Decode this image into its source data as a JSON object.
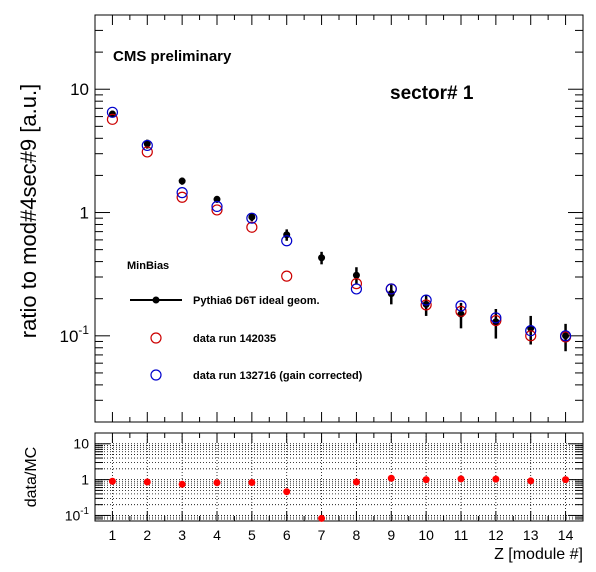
{
  "chart_data": [
    {
      "type": "scatter",
      "panel": "top",
      "yscale": "log",
      "ylim": [
        0.02,
        40
      ],
      "xlim": [
        0.5,
        14.5
      ],
      "ylabel": "ratio to mod#4sec#9 [a.u.]",
      "xlabel": "",
      "y_tick_labels": [
        {
          "value": 10,
          "base": "10",
          "exp": ""
        },
        {
          "value": 1,
          "base": "1",
          "exp": ""
        },
        {
          "value": 0.1,
          "base": "10",
          "exp": "-1"
        }
      ],
      "annotations": {
        "experiment": "CMS preliminary",
        "sector": "sector# 1"
      },
      "legend": {
        "header": "MinBias",
        "placement": "center-left"
      },
      "series": [
        {
          "name": "Pythia6 D6T ideal geom.",
          "color": "#000000",
          "marker": "filled-circle",
          "x": [
            1,
            2,
            3,
            4,
            5,
            6,
            7,
            8,
            9,
            10,
            11,
            12,
            13,
            14
          ],
          "y": [
            6.3,
            3.6,
            1.8,
            1.28,
            0.92,
            0.66,
            0.43,
            0.31,
            0.22,
            0.18,
            0.15,
            0.13,
            0.115,
            0.1
          ],
          "yerr_low": [
            0.4,
            0.3,
            0.12,
            0.08,
            0.07,
            0.07,
            0.05,
            0.05,
            0.04,
            0.035,
            0.035,
            0.035,
            0.03,
            0.025
          ],
          "yerr_high": [
            0.4,
            0.3,
            0.12,
            0.08,
            0.07,
            0.07,
            0.05,
            0.05,
            0.04,
            0.035,
            0.035,
            0.035,
            0.03,
            0.025
          ]
        },
        {
          "name": "data run 142035",
          "color": "#cc0000",
          "marker": "open-circle",
          "x": [
            1,
            2,
            3,
            4,
            5,
            6,
            7,
            8,
            9,
            10,
            11,
            12,
            13,
            14
          ],
          "y": [
            5.7,
            3.1,
            1.33,
            1.05,
            0.76,
            0.305,
            null,
            0.265,
            0.24,
            0.178,
            0.158,
            0.133,
            0.1,
            0.098
          ]
        },
        {
          "name": "data run 132716 (gain corrected)",
          "color": "#0000cc",
          "marker": "open-circle",
          "x": [
            1,
            2,
            3,
            4,
            5,
            6,
            7,
            8,
            9,
            10,
            11,
            12,
            13,
            14
          ],
          "y": [
            6.5,
            3.5,
            1.45,
            1.12,
            0.9,
            0.59,
            null,
            0.24,
            0.24,
            0.195,
            0.175,
            0.14,
            0.11,
            0.1
          ]
        }
      ]
    },
    {
      "type": "scatter",
      "panel": "bottom",
      "yscale": "log",
      "ylim": [
        0.07,
        20
      ],
      "xlim": [
        0.5,
        14.5
      ],
      "ylabel": "data/MC",
      "xlabel": "Z [module #]",
      "x_tick_labels": [
        "1",
        "2",
        "3",
        "4",
        "5",
        "6",
        "7",
        "8",
        "9",
        "10",
        "11",
        "12",
        "13",
        "14"
      ],
      "y_tick_labels": [
        {
          "value": 10,
          "base": "10",
          "exp": ""
        },
        {
          "value": 1,
          "base": "1",
          "exp": ""
        },
        {
          "value": 0.1,
          "base": "10",
          "exp": "-1"
        }
      ],
      "grid": true,
      "series": [
        {
          "color": "#ff0000",
          "marker": "filled-circle",
          "x": [
            1,
            2,
            3,
            4,
            5,
            6,
            7,
            8,
            9,
            10,
            11,
            12,
            13,
            14
          ],
          "y": [
            0.9,
            0.86,
            0.74,
            0.82,
            0.83,
            0.46,
            0.083,
            0.86,
            1.09,
            1.0,
            1.05,
            1.03,
            0.92,
            1.0
          ]
        }
      ]
    }
  ]
}
